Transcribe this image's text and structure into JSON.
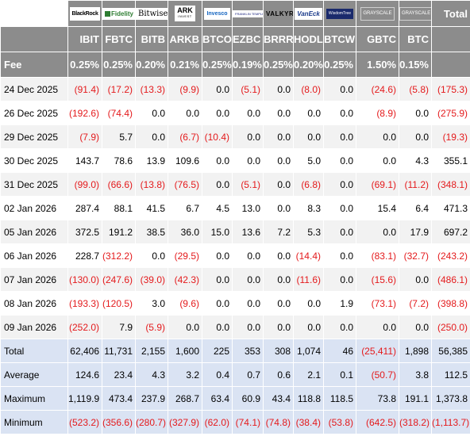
{
  "logos": [
    {
      "name": "BlackRock",
      "icon": "blackrock-logo-icon"
    },
    {
      "name": "Fidelity",
      "icon": "fidelity-logo-icon"
    },
    {
      "name": "Bitwise",
      "icon": "bitwise-logo-icon"
    },
    {
      "name": "ARK",
      "sub": "INVEST",
      "icon": "ark-invest-logo-icon"
    },
    {
      "name": "Invesco",
      "icon": "invesco-logo-icon"
    },
    {
      "name": "FRANKLIN TEMPLETON",
      "icon": "franklin-templeton-logo-icon"
    },
    {
      "name": "VALKYRIE",
      "icon": "valkyrie-logo-icon"
    },
    {
      "name": "VanEck",
      "icon": "vaneck-logo-icon"
    },
    {
      "name": "WisdomTree",
      "icon": "wisdomtree-logo-icon"
    },
    {
      "name": "GRAYSCALE",
      "icon": "grayscale-logo-icon"
    },
    {
      "name": "GRAYSCALE",
      "icon": "grayscale-logo-icon"
    }
  ],
  "total_header": "Total",
  "tickers": [
    "IBIT",
    "FBTC",
    "BITB",
    "ARKB",
    "BTCO",
    "EZBC",
    "BRRR",
    "HODL",
    "BTCW",
    "GBTC",
    "BTC"
  ],
  "fee_label": "Fee",
  "fees": [
    "0.25%",
    "0.25%",
    "0.20%",
    "0.21%",
    "0.25%",
    "0.19%",
    "0.25%",
    "0.20%",
    "0.25%",
    "1.50%",
    "0.15%"
  ],
  "rows": [
    {
      "date": "24 Dec 2025",
      "values": [
        "(91.4)",
        "(17.2)",
        "(13.3)",
        "(9.9)",
        "0.0",
        "(5.1)",
        "0.0",
        "(8.0)",
        "0.0",
        "(24.6)",
        "(5.8)"
      ],
      "total": "(175.3)"
    },
    {
      "date": "26 Dec 2025",
      "values": [
        "(192.6)",
        "(74.4)",
        "0.0",
        "0.0",
        "0.0",
        "0.0",
        "0.0",
        "0.0",
        "0.0",
        "(8.9)",
        "0.0"
      ],
      "total": "(275.9)"
    },
    {
      "date": "29 Dec 2025",
      "values": [
        "(7.9)",
        "5.7",
        "0.0",
        "(6.7)",
        "(10.4)",
        "0.0",
        "0.0",
        "0.0",
        "0.0",
        "0.0",
        "0.0"
      ],
      "total": "(19.3)"
    },
    {
      "date": "30 Dec 2025",
      "values": [
        "143.7",
        "78.6",
        "13.9",
        "109.6",
        "0.0",
        "0.0",
        "0.0",
        "5.0",
        "0.0",
        "0.0",
        "4.3"
      ],
      "total": "355.1"
    },
    {
      "date": "31 Dec 2025",
      "values": [
        "(99.0)",
        "(66.6)",
        "(13.8)",
        "(76.5)",
        "0.0",
        "(5.1)",
        "0.0",
        "(6.8)",
        "0.0",
        "(69.1)",
        "(11.2)"
      ],
      "total": "(348.1)"
    },
    {
      "date": "02 Jan 2026",
      "values": [
        "287.4",
        "88.1",
        "41.5",
        "6.7",
        "4.5",
        "13.0",
        "0.0",
        "8.3",
        "0.0",
        "15.4",
        "6.4"
      ],
      "total": "471.3"
    },
    {
      "date": "05 Jan 2026",
      "values": [
        "372.5",
        "191.2",
        "38.5",
        "36.0",
        "15.0",
        "13.6",
        "7.2",
        "5.3",
        "0.0",
        "0.0",
        "17.9"
      ],
      "total": "697.2"
    },
    {
      "date": "06 Jan 2026",
      "values": [
        "228.7",
        "(312.2)",
        "0.0",
        "(29.5)",
        "0.0",
        "0.0",
        "0.0",
        "(14.4)",
        "0.0",
        "(83.1)",
        "(32.7)"
      ],
      "total": "(243.2)"
    },
    {
      "date": "07 Jan 2026",
      "values": [
        "(130.0)",
        "(247.6)",
        "(39.0)",
        "(42.3)",
        "0.0",
        "0.0",
        "0.0",
        "(11.6)",
        "0.0",
        "(15.6)",
        "0.0"
      ],
      "total": "(486.1)"
    },
    {
      "date": "08 Jan 2026",
      "values": [
        "(193.3)",
        "(120.5)",
        "3.0",
        "(9.6)",
        "0.0",
        "0.0",
        "0.0",
        "0.0",
        "1.9",
        "(73.1)",
        "(7.2)"
      ],
      "total": "(398.8)"
    },
    {
      "date": "09 Jan 2026",
      "values": [
        "(252.0)",
        "7.9",
        "(5.9)",
        "0.0",
        "0.0",
        "0.0",
        "0.0",
        "0.0",
        "0.0",
        "0.0",
        "0.0"
      ],
      "total": "(250.0)"
    }
  ],
  "stats": [
    {
      "label": "Total",
      "values": [
        "62,406",
        "11,731",
        "2,155",
        "1,600",
        "225",
        "353",
        "308",
        "1,074",
        "46",
        "(25,411)",
        "1,898"
      ],
      "total": "56,385"
    },
    {
      "label": "Average",
      "values": [
        "124.6",
        "23.4",
        "4.3",
        "3.2",
        "0.4",
        "0.7",
        "0.6",
        "2.1",
        "0.1",
        "(50.7)",
        "3.8"
      ],
      "total": "112.5"
    },
    {
      "label": "Maximum",
      "values": [
        "1,119.9",
        "473.4",
        "237.9",
        "268.7",
        "63.4",
        "60.9",
        "43.4",
        "118.8",
        "118.5",
        "73.8",
        "191.1"
      ],
      "total": "1,373.8"
    },
    {
      "label": "Minimum",
      "values": [
        "(523.2)",
        "(356.6)",
        "(280.7)",
        "(327.9)",
        "(62.0)",
        "(74.1)",
        "(74.8)",
        "(38.4)",
        "(53.8)",
        "(642.5)",
        "(318.2)"
      ],
      "total": "(1,113.7)"
    }
  ],
  "colors": {
    "header_bg": "#8c8c8c",
    "stripe_bg": "#f2f2f2",
    "stats_bg": "#dae3f3",
    "negative": "#e41a1c"
  }
}
